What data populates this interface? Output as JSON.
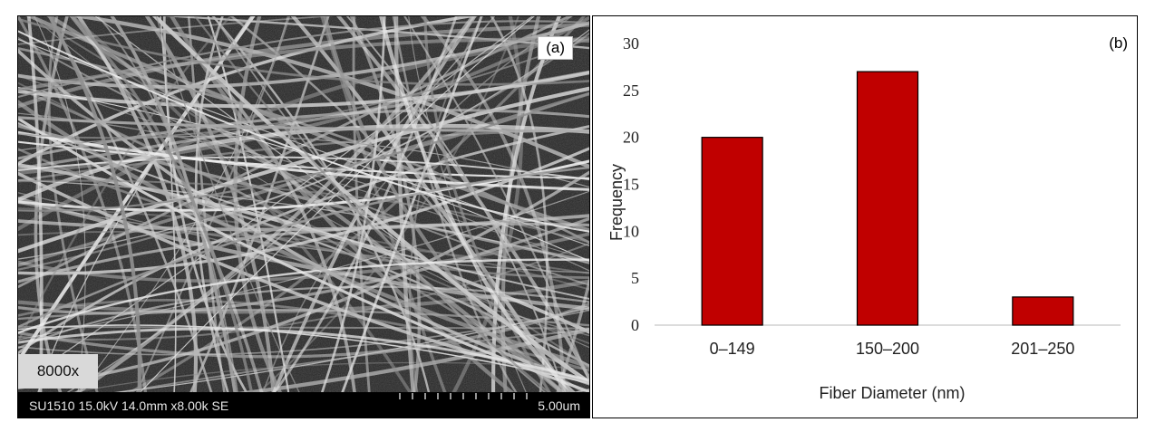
{
  "panel_a": {
    "label": "(a)",
    "magnification": "8000x",
    "info": "SU1510 15.0kV 14.0mm x8.00k SE",
    "scale": "5.00um"
  },
  "panel_b": {
    "label": "(b)"
  },
  "chart_data": {
    "type": "bar",
    "categories": [
      "0–149",
      "150–200",
      "201–250"
    ],
    "values": [
      20,
      27,
      3
    ],
    "xlabel": "Fiber Diameter (nm)",
    "ylabel": "Frequency",
    "ylim": [
      0,
      30
    ],
    "yticks": [
      "0",
      "5",
      "10",
      "15",
      "20",
      "25",
      "30"
    ],
    "bar_color": "#c00000",
    "grid": false,
    "legend": "none"
  }
}
